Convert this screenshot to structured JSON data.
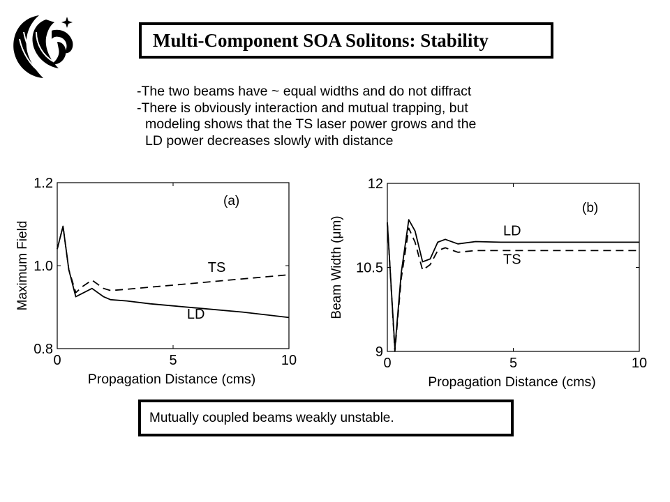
{
  "slide": {
    "title": "Multi-Component SOA Solitons: Stability",
    "bullets": [
      {
        "lines": [
          "-The two beams have ~ equal widths and do not diffract"
        ]
      },
      {
        "lines": [
          "-There is obviously interaction and mutual trapping, but",
          "modeling shows that the TS laser power grows and the",
          "LD power decreases slowly with distance"
        ]
      }
    ],
    "conclusion": "Mutually coupled beams weakly unstable."
  },
  "chart_data": [
    {
      "type": "line",
      "panel_label": "(a)",
      "xlabel": "Propagation Distance (cms)",
      "ylabel": "Maximum Field",
      "xlim": [
        0,
        10
      ],
      "ylim": [
        0.8,
        1.2
      ],
      "xticks": [
        0,
        5,
        10
      ],
      "xtick_labels": [
        "0",
        "5",
        "10"
      ],
      "yticks": [
        0.8,
        1.0,
        1.2
      ],
      "ytick_labels": [
        "0.8",
        "1.0",
        "1.2"
      ],
      "series": [
        {
          "name": "LD",
          "style": "solid",
          "color": "#000000",
          "x": [
            0,
            0.25,
            0.5,
            0.8,
            1.5,
            2.0,
            2.3,
            3.0,
            4.0,
            6.0,
            8.0,
            10.0
          ],
          "y": [
            1.04,
            1.095,
            0.99,
            0.925,
            0.945,
            0.925,
            0.918,
            0.915,
            0.908,
            0.898,
            0.888,
            0.875
          ]
        },
        {
          "name": "TS",
          "style": "dashed",
          "color": "#000000",
          "x": [
            0,
            0.25,
            0.5,
            0.8,
            1.1,
            1.5,
            2.0,
            2.3,
            3.0,
            4.0,
            6.0,
            8.0,
            10.0
          ],
          "y": [
            1.04,
            1.095,
            0.99,
            0.935,
            0.95,
            0.965,
            0.945,
            0.94,
            0.943,
            0.948,
            0.958,
            0.968,
            0.978
          ]
        }
      ],
      "annotations": [
        {
          "text": "TS",
          "x": 6.5,
          "y": 0.985
        },
        {
          "text": "LD",
          "x": 5.6,
          "y": 0.872
        }
      ]
    },
    {
      "type": "line",
      "panel_label": "(b)",
      "xlabel": "Propagation Distance (cms)",
      "ylabel": "Beam Width (μm)",
      "xlim": [
        0,
        10
      ],
      "ylim": [
        9,
        12
      ],
      "xticks": [
        0,
        5,
        10
      ],
      "xtick_labels": [
        "0",
        "5",
        "10"
      ],
      "yticks": [
        9,
        10.5,
        12
      ],
      "ytick_labels": [
        "9",
        "10.5",
        "12"
      ],
      "series": [
        {
          "name": "LD",
          "style": "solid",
          "color": "#000000",
          "x": [
            0,
            0.3,
            0.55,
            0.85,
            1.1,
            1.4,
            1.7,
            2.0,
            2.3,
            2.8,
            3.5,
            4.5,
            6.0,
            8.0,
            10.0
          ],
          "y": [
            11.3,
            9.05,
            10.4,
            11.35,
            11.15,
            10.6,
            10.65,
            10.95,
            11.0,
            10.92,
            10.96,
            10.95,
            10.95,
            10.95,
            10.95
          ]
        },
        {
          "name": "TS",
          "style": "dashed",
          "color": "#000000",
          "x": [
            0,
            0.3,
            0.55,
            0.85,
            1.1,
            1.4,
            1.7,
            2.0,
            2.3,
            2.8,
            3.5,
            4.5,
            6.0,
            8.0,
            10.0
          ],
          "y": [
            11.3,
            9.0,
            10.3,
            11.2,
            10.95,
            10.45,
            10.55,
            10.8,
            10.85,
            10.77,
            10.8,
            10.8,
            10.8,
            10.8,
            10.8
          ]
        }
      ],
      "annotations": [
        {
          "text": "LD",
          "x": 4.6,
          "y": 11.07
        },
        {
          "text": "TS",
          "x": 4.6,
          "y": 10.56
        }
      ]
    }
  ]
}
